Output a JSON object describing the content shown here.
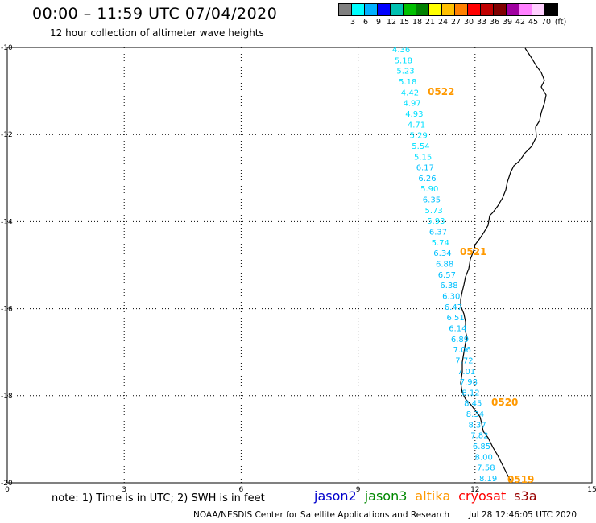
{
  "header": {
    "title": "00:00 – 11:59 UTC 07/04/2020",
    "subtitle": "12 hour collection of altimeter wave heights"
  },
  "legend": {
    "colors": [
      "#808080",
      "#00ffff",
      "#00b0ff",
      "#0000ff",
      "#00c0b0",
      "#00c000",
      "#008000",
      "#ffff00",
      "#ffc000",
      "#ff8000",
      "#ff0000",
      "#c00000",
      "#800000",
      "#a000a0",
      "#ff80ff",
      "#ffd0ff",
      "#000000"
    ],
    "labels": [
      "3",
      "6",
      "9",
      "12",
      "15",
      "18",
      "21",
      "24",
      "27",
      "30",
      "33",
      "36",
      "39",
      "42",
      "45",
      "70",
      "(ft)"
    ]
  },
  "map": {
    "y_ticks": [
      "-10",
      "-12",
      "-14",
      "-16",
      "-18",
      "-20"
    ],
    "x_ticks": [
      "0",
      "3",
      "6",
      "9",
      "12",
      "15"
    ],
    "waves": [
      {
        "v": "4.36",
        "c": "#00e0ff"
      },
      {
        "v": "5.18",
        "c": "#00e0ff"
      },
      {
        "v": "5.23",
        "c": "#00e0ff"
      },
      {
        "v": "5.18",
        "c": "#00e0ff"
      },
      {
        "v": "4.42",
        "c": "#00e0ff"
      },
      {
        "v": "4.97",
        "c": "#00e0ff"
      },
      {
        "v": "4.93",
        "c": "#00e0ff"
      },
      {
        "v": "4.71",
        "c": "#00e0ff"
      },
      {
        "v": "5.29",
        "c": "#00e0ff"
      },
      {
        "v": "5.54",
        "c": "#00e0ff"
      },
      {
        "v": "5.15",
        "c": "#00e0ff"
      },
      {
        "v": "6.17",
        "c": "#00c0ff"
      },
      {
        "v": "6.26",
        "c": "#00c0ff"
      },
      {
        "v": "5.90",
        "c": "#00e0ff"
      },
      {
        "v": "6.35",
        "c": "#00c0ff"
      },
      {
        "v": "5.73",
        "c": "#00e0ff"
      },
      {
        "v": "5.93",
        "c": "#00e0ff"
      },
      {
        "v": "6.37",
        "c": "#00c0ff"
      },
      {
        "v": "5.74",
        "c": "#00e0ff"
      },
      {
        "v": "6.34",
        "c": "#00c0ff"
      },
      {
        "v": "6.88",
        "c": "#00c0ff"
      },
      {
        "v": "6.57",
        "c": "#00c0ff"
      },
      {
        "v": "6.38",
        "c": "#00c0ff"
      },
      {
        "v": "6.30",
        "c": "#00c0ff"
      },
      {
        "v": "6.47",
        "c": "#00c0ff"
      },
      {
        "v": "6.51",
        "c": "#00c0ff"
      },
      {
        "v": "6.14",
        "c": "#00c0ff"
      },
      {
        "v": "6.89",
        "c": "#00c0ff"
      },
      {
        "v": "7.06",
        "c": "#00c0ff"
      },
      {
        "v": "7.72",
        "c": "#00c0ff"
      },
      {
        "v": "7.01",
        "c": "#00c0ff"
      },
      {
        "v": "7.98",
        "c": "#00c0ff"
      },
      {
        "v": "8.12",
        "c": "#00c0ff"
      },
      {
        "v": "8.45",
        "c": "#00c0ff"
      },
      {
        "v": "8.34",
        "c": "#00c0ff"
      },
      {
        "v": "8.37",
        "c": "#00c0ff"
      },
      {
        "v": "7.82",
        "c": "#00c0ff"
      },
      {
        "v": "6.85",
        "c": "#00c0ff"
      },
      {
        "v": "8.00",
        "c": "#00c0ff"
      },
      {
        "v": "7.58",
        "c": "#00c0ff"
      },
      {
        "v": "8.19",
        "c": "#00c0ff"
      }
    ],
    "time_labels": [
      {
        "t": "0522",
        "c": "#ff9900"
      },
      {
        "t": "0521",
        "c": "#ff9900"
      },
      {
        "t": "0520",
        "c": "#ff9900"
      },
      {
        "t": "0519",
        "c": "#ff9900"
      }
    ]
  },
  "footer": {
    "note": "note: 1) Time is in UTC; 2) SWH is in feet",
    "satellites": [
      {
        "name": "jason2",
        "color": "#0000cc"
      },
      {
        "name": "jason3",
        "color": "#008800"
      },
      {
        "name": "altika",
        "color": "#ff9900"
      },
      {
        "name": "cryosat",
        "color": "#ff0000"
      },
      {
        "name": "s3a",
        "color": "#990000"
      }
    ],
    "credit": "NOAA/NESDIS Center for Satellite Applications and Research",
    "timestamp": "Jul 28 12:46:05 UTC 2020"
  }
}
